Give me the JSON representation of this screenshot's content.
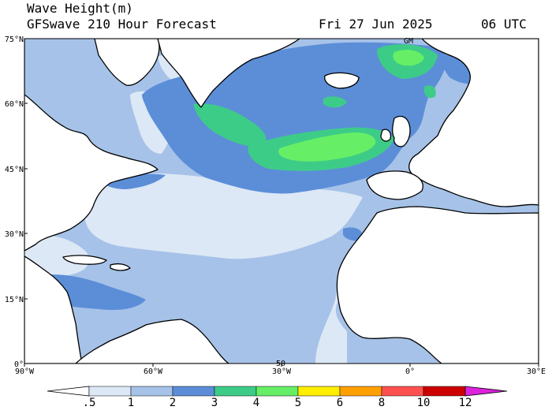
{
  "header": {
    "title": "Wave Height(m)",
    "model": "GFSwave 210 Hour Forecast",
    "date": "Fri 27 Jun 2025",
    "time": "06 UTC"
  },
  "axes": {
    "lat_labels": [
      "75°N",
      "60°N",
      "45°N",
      "30°N",
      "15°N",
      "0°"
    ],
    "lon_labels": [
      "90°W",
      "60°W",
      "30°W",
      "0°",
      "30°E"
    ]
  },
  "map_labels": {
    "top_mark": "GM",
    "bottom_mark": "50"
  },
  "colorbar": {
    "labels": [
      ".5",
      "1",
      "2",
      "3",
      "4",
      "5",
      "6",
      "8",
      "10",
      "12"
    ],
    "colors": [
      "#ffffff",
      "#dce8f6",
      "#a6c2e8",
      "#5c8ed8",
      "#3dcc88",
      "#66ee66",
      "#ffee00",
      "#ffa000",
      "#ff5050",
      "#cc0000",
      "#dd22dd"
    ]
  },
  "palette": {
    "ocean_base": "#a6c2e8",
    "calm": "#dce8f6",
    "moderate": "#5c8ed8",
    "rough": "#3dcc88",
    "very_rough": "#66ee66",
    "land": "#ffffff",
    "coast": "#000000"
  }
}
